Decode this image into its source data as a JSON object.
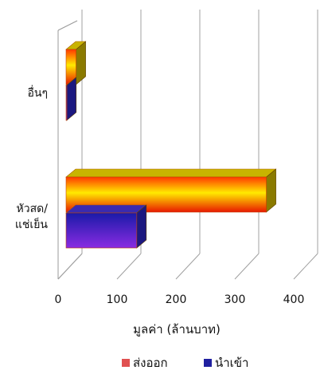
{
  "chart_data": {
    "type": "bar",
    "orientation": "horizontal",
    "three_d": true,
    "categories": [
      "หัวสด/\nแช่เย็น",
      "อื่นๆ"
    ],
    "series": [
      {
        "name": "ส่งออก",
        "values": [
          340,
          17
        ],
        "color": "#f2a01a",
        "legend_color": "#e05050"
      },
      {
        "name": "นำเข้า",
        "values": [
          120,
          1
        ],
        "color": "#5a2fd0",
        "legend_color": "#2020a0"
      }
    ],
    "xlabel": "มูลค่า (ล้านบาท)",
    "ylabel": "",
    "xlim": [
      0,
      400
    ],
    "xticks": [
      0,
      100,
      200,
      300,
      400
    ],
    "grid": true,
    "legend_position": "bottom"
  }
}
